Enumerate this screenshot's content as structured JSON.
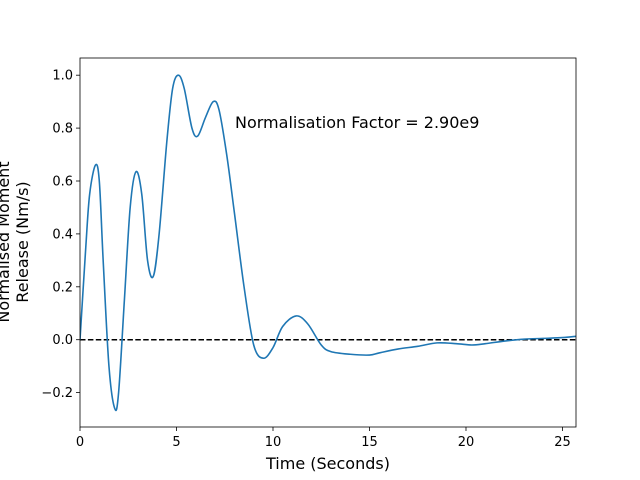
{
  "chart_data": {
    "type": "line",
    "xlabel": "Time (Seconds)",
    "ylabel": [
      "Normalised Moment",
      "Release (Nm/s)"
    ],
    "annotation": "Normalisation Factor = 2.90e9",
    "reference_line": 0,
    "xlim": [
      0,
      25.7
    ],
    "ylim": [
      -0.33,
      1.065
    ],
    "xticks": [
      0,
      5,
      10,
      15,
      20,
      25
    ],
    "yticks": [
      {
        "value": -0.2,
        "label": "−0.2"
      },
      {
        "value": 0,
        "label": "0.0"
      },
      0.2,
      0.4,
      0.6,
      0.8,
      {
        "value": 1,
        "label": "1.0"
      }
    ],
    "series": [
      {
        "color": "#1f77b4",
        "x": [
          0,
          0.3,
          0.5,
          0.8,
          1.0,
          1.2,
          1.5,
          1.8,
          2.0,
          2.3,
          2.6,
          2.9,
          3.2,
          3.5,
          3.8,
          4.1,
          4.5,
          4.8,
          5.1,
          5.4,
          5.8,
          6.1,
          6.5,
          6.9,
          7.2,
          7.6,
          8.0,
          8.5,
          9.0,
          9.5,
          10.0,
          10.5,
          11.2,
          11.8,
          12.5,
          13.0,
          14.0,
          15.0,
          15.5,
          16.5,
          17.5,
          18.5,
          19.5,
          20.3,
          21.0,
          22.0,
          23.0,
          24.0,
          25.0,
          25.7
        ],
        "values": [
          0,
          0.35,
          0.55,
          0.66,
          0.6,
          0.3,
          -0.1,
          -0.26,
          -0.2,
          0.15,
          0.5,
          0.635,
          0.55,
          0.3,
          0.24,
          0.4,
          0.75,
          0.95,
          1.0,
          0.95,
          0.8,
          0.77,
          0.84,
          0.9,
          0.87,
          0.7,
          0.48,
          0.2,
          -0.02,
          -0.07,
          -0.03,
          0.05,
          0.09,
          0.06,
          -0.02,
          -0.045,
          -0.055,
          -0.058,
          -0.05,
          -0.035,
          -0.025,
          -0.012,
          -0.015,
          -0.02,
          -0.015,
          -0.005,
          0.002,
          0.005,
          0.008,
          0.013
        ]
      }
    ]
  }
}
